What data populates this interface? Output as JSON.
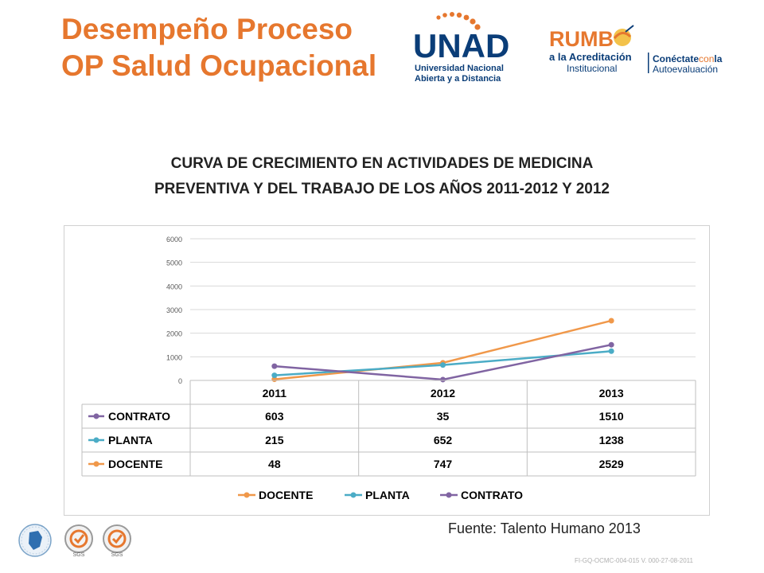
{
  "header": {
    "title_line1": "Desempeño Proceso",
    "title_line2": "OP Salud Ocupacional"
  },
  "logos": {
    "unad_letters": "UNAD",
    "unad_line1": "Universidad Nacional",
    "unad_line2": "Abierta y a Distancia",
    "rumbo_word": "RUMB",
    "rumbo_line1_a": "a la ",
    "rumbo_line1_b": "Acreditación",
    "rumbo_line2": "Institucional",
    "conectate_a": "Conéctate",
    "conectate_b": "con",
    "conectate_c": "la",
    "conectate_line2": "Autoevaluación"
  },
  "subtitle": {
    "line1": "CURVA DE CRECIMIENTO EN ACTIVIDADES DE MEDICINA",
    "line2": "PREVENTIVA Y DEL TRABAJO DE LOS AÑOS 2011-2012 Y 2012"
  },
  "chart_data": {
    "type": "line",
    "categories": [
      "2011",
      "2012",
      "2013"
    ],
    "ylim": [
      0,
      6000
    ],
    "yticks": [
      0,
      1000,
      2000,
      3000,
      4000,
      5000,
      6000
    ],
    "grid": true,
    "legend_position": "bottom",
    "series": [
      {
        "name": "DOCENTE",
        "color": "#f0984a",
        "values": [
          48,
          747,
          2529
        ]
      },
      {
        "name": "PLANTA",
        "color": "#4bacc6",
        "values": [
          215,
          652,
          1238
        ]
      },
      {
        "name": "CONTRATO",
        "color": "#8064a2",
        "values": [
          603,
          35,
          1510
        ]
      }
    ],
    "table_rows": [
      "CONTRATO",
      "PLANTA",
      "DOCENTE"
    ]
  },
  "footer": {
    "source": "Fuente: Talento Humano 2013",
    "code": "FI-GQ-OCMC-004-015 V. 000-27-08-2011",
    "badge_label": "SGS"
  },
  "colors": {
    "title": "#e6772e",
    "docente": "#f0984a",
    "planta": "#4bacc6",
    "contrato": "#8064a2"
  }
}
